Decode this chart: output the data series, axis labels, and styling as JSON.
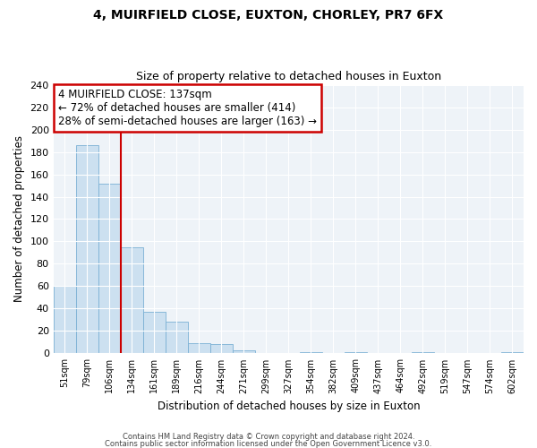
{
  "title": "4, MUIRFIELD CLOSE, EUXTON, CHORLEY, PR7 6FX",
  "subtitle": "Size of property relative to detached houses in Euxton",
  "xlabel": "Distribution of detached houses by size in Euxton",
  "ylabel": "Number of detached properties",
  "bar_color": "#cce0f0",
  "bar_edge_color": "#7ab0d4",
  "annotation_box_edge": "#cc0000",
  "vline_color": "#cc0000",
  "categories": [
    "51sqm",
    "79sqm",
    "106sqm",
    "134sqm",
    "161sqm",
    "189sqm",
    "216sqm",
    "244sqm",
    "271sqm",
    "299sqm",
    "327sqm",
    "354sqm",
    "382sqm",
    "409sqm",
    "437sqm",
    "464sqm",
    "492sqm",
    "519sqm",
    "547sqm",
    "574sqm",
    "602sqm"
  ],
  "values": [
    60,
    186,
    152,
    95,
    37,
    28,
    9,
    8,
    3,
    0,
    0,
    1,
    0,
    1,
    0,
    0,
    1,
    0,
    0,
    0,
    1
  ],
  "vline_index": 3,
  "annotation_title": "4 MUIRFIELD CLOSE: 137sqm",
  "annotation_line1": "← 72% of detached houses are smaller (414)",
  "annotation_line2": "28% of semi-detached houses are larger (163) →",
  "footer1": "Contains HM Land Registry data © Crown copyright and database right 2024.",
  "footer2": "Contains public sector information licensed under the Open Government Licence v3.0.",
  "ylim": [
    0,
    240
  ],
  "yticks": [
    0,
    20,
    40,
    60,
    80,
    100,
    120,
    140,
    160,
    180,
    200,
    220,
    240
  ],
  "background_color": "#eef3f8",
  "grid_color": "#ffffff",
  "title_fontsize": 10,
  "subtitle_fontsize": 9
}
